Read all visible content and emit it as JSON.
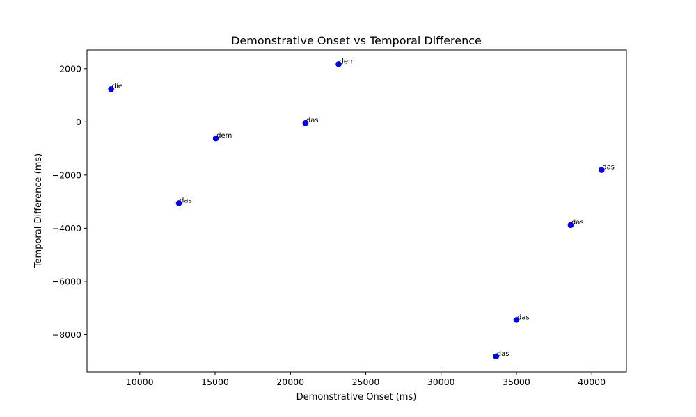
{
  "chart_data": {
    "type": "scatter",
    "title": "Demonstrative Onset vs Temporal Difference",
    "xlabel": "Demonstrative Onset (ms)",
    "ylabel": "Temporal Difference (ms)",
    "xlim": [
      6500,
      42300
    ],
    "ylim": [
      -9400,
      2700
    ],
    "xticks": [
      10000,
      15000,
      20000,
      25000,
      30000,
      35000,
      40000
    ],
    "yticks": [
      -8000,
      -6000,
      -4000,
      -2000,
      0,
      2000
    ],
    "grid": false,
    "marker_color": "#0000ff",
    "points": [
      {
        "x": 8100,
        "y": 1230,
        "label": "die"
      },
      {
        "x": 12600,
        "y": -3060,
        "label": "das"
      },
      {
        "x": 15050,
        "y": -620,
        "label": "dem"
      },
      {
        "x": 21000,
        "y": -50,
        "label": "das"
      },
      {
        "x": 23200,
        "y": 2170,
        "label": "dem"
      },
      {
        "x": 33650,
        "y": -8820,
        "label": "das"
      },
      {
        "x": 35000,
        "y": -7450,
        "label": "das"
      },
      {
        "x": 38600,
        "y": -3880,
        "label": "das"
      },
      {
        "x": 40650,
        "y": -1810,
        "label": "das"
      }
    ]
  }
}
